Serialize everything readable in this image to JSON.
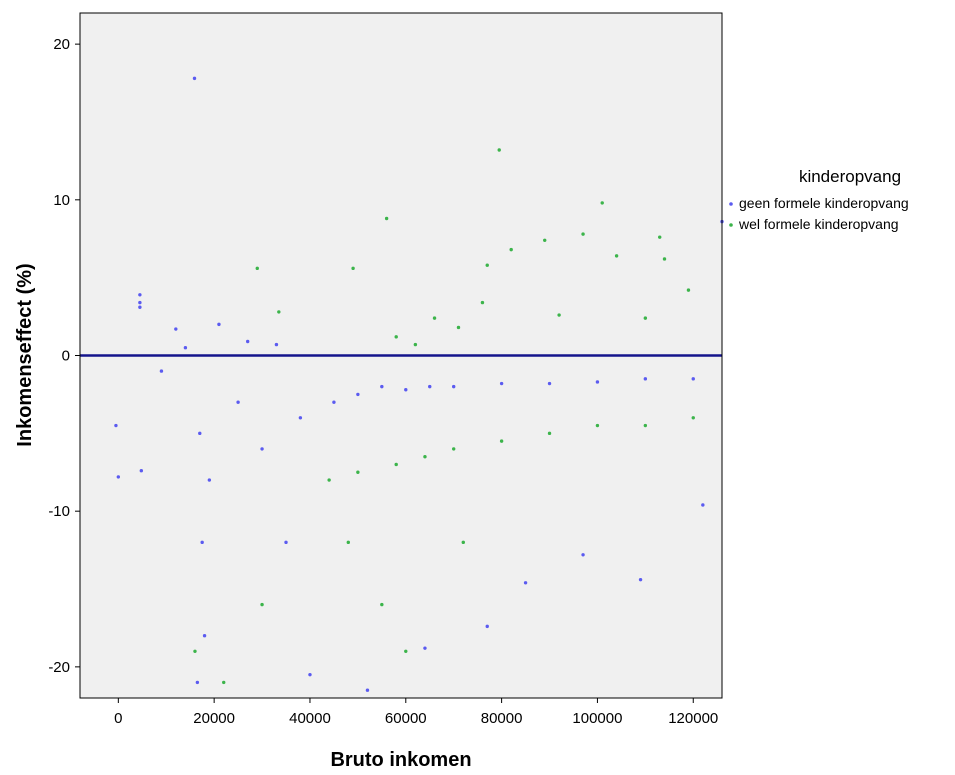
{
  "chart_data": {
    "type": "scatter",
    "title": "",
    "xlabel": "Bruto inkomen",
    "ylabel": "Inkomenseffect (%)",
    "xlim": [
      -8000,
      126000
    ],
    "ylim": [
      -22,
      22
    ],
    "x_ticks": [
      0,
      20000,
      40000,
      60000,
      80000,
      100000,
      120000
    ],
    "y_ticks": [
      -20,
      -10,
      0,
      10,
      20
    ],
    "grid": false,
    "background": "#f0f0f0",
    "reference_line": {
      "y": 0,
      "color": "#14148c"
    },
    "legend": {
      "title": "kinderopvang",
      "placement": "right"
    },
    "series": [
      {
        "name": "geen formele kinderopvang",
        "color": "#5b5bf0",
        "points": [
          [
            15900,
            17.8
          ],
          [
            4500,
            3.9
          ],
          [
            4500,
            3.4
          ],
          [
            4500,
            3.1
          ],
          [
            -500,
            -4.5
          ],
          [
            0,
            -7.8
          ],
          [
            4800,
            -7.4
          ],
          [
            12000,
            1.7
          ],
          [
            14000,
            0.5
          ],
          [
            21000,
            2.0
          ],
          [
            27000,
            0.9
          ],
          [
            33000,
            0.7
          ],
          [
            126000,
            8.6
          ],
          [
            17000,
            -5.0
          ],
          [
            17500,
            -12.0
          ],
          [
            18000,
            -18.0
          ],
          [
            16500,
            -21.0
          ],
          [
            19000,
            -8.0
          ],
          [
            25000,
            -3.0
          ],
          [
            30000,
            -6.0
          ],
          [
            35000,
            -12.0
          ],
          [
            40000,
            -20.5
          ],
          [
            38000,
            -4.0
          ],
          [
            45000,
            -3.0
          ],
          [
            50000,
            -2.5
          ],
          [
            55000,
            -2.0
          ],
          [
            60000,
            -2.2
          ],
          [
            65000,
            -2.0
          ],
          [
            70000,
            -2.0
          ],
          [
            80000,
            -1.8
          ],
          [
            90000,
            -1.8
          ],
          [
            100000,
            -1.7
          ],
          [
            110000,
            -1.5
          ],
          [
            120000,
            -1.5
          ],
          [
            85000,
            -14.6
          ],
          [
            97000,
            -12.8
          ],
          [
            109000,
            -14.4
          ],
          [
            77000,
            -17.4
          ],
          [
            64000,
            -18.8
          ],
          [
            52000,
            -21.5
          ],
          [
            122000,
            -9.6
          ],
          [
            9000,
            -1.0
          ]
        ]
      },
      {
        "name": "wel formele kinderopvang",
        "color": "#3cb44b",
        "points": [
          [
            79500,
            13.2
          ],
          [
            56000,
            8.8
          ],
          [
            101000,
            9.8
          ],
          [
            29000,
            5.6
          ],
          [
            49000,
            5.6
          ],
          [
            33500,
            2.8
          ],
          [
            77000,
            5.8
          ],
          [
            82000,
            6.8
          ],
          [
            89000,
            7.4
          ],
          [
            97000,
            7.8
          ],
          [
            104000,
            6.4
          ],
          [
            113000,
            7.6
          ],
          [
            114000,
            6.2
          ],
          [
            119000,
            4.2
          ],
          [
            66000,
            2.4
          ],
          [
            71000,
            1.8
          ],
          [
            76000,
            3.4
          ],
          [
            92000,
            2.6
          ],
          [
            110000,
            2.4
          ],
          [
            58000,
            1.2
          ],
          [
            62000,
            0.7
          ],
          [
            44000,
            -8.0
          ],
          [
            50000,
            -7.5
          ],
          [
            58000,
            -7.0
          ],
          [
            64000,
            -6.5
          ],
          [
            70000,
            -6.0
          ],
          [
            80000,
            -5.5
          ],
          [
            90000,
            -5.0
          ],
          [
            100000,
            -4.5
          ],
          [
            110000,
            -4.5
          ],
          [
            120000,
            -4.0
          ],
          [
            16000,
            -19.0
          ],
          [
            22000,
            -21.0
          ],
          [
            30000,
            -16.0
          ],
          [
            48000,
            -12.0
          ],
          [
            55000,
            -16.0
          ],
          [
            72000,
            -12.0
          ],
          [
            60000,
            -19.0
          ]
        ]
      }
    ]
  }
}
